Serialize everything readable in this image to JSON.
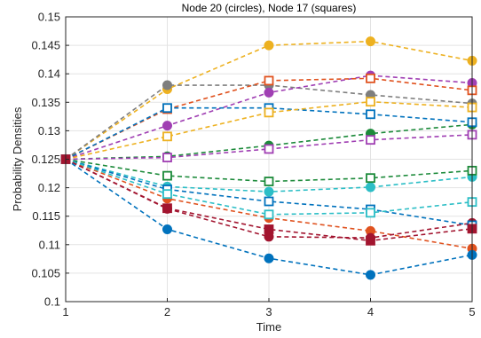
{
  "chart_data": {
    "type": "line",
    "title": "Node 20 (circles), Node  17 (squares)",
    "xlabel": "Time",
    "ylabel": "Probability Densities",
    "xlim": [
      1,
      5
    ],
    "ylim": [
      0.1,
      0.15
    ],
    "x": [
      1,
      2,
      3,
      4,
      5
    ],
    "x_ticks": [
      "1",
      "2",
      "3",
      "4",
      "5"
    ],
    "y_ticks": [
      "0.1",
      "0.105",
      "0.11",
      "0.115",
      "0.12",
      "0.125",
      "0.13",
      "0.135",
      "0.14",
      "0.145",
      "0.15"
    ],
    "grid": true,
    "line_style": "dashed",
    "series": [
      {
        "marker": "circle",
        "color": "#EDB120",
        "values": [
          0.125,
          0.1373,
          0.145,
          0.1457,
          0.1423
        ]
      },
      {
        "marker": "circle",
        "color": "#7E7E7E",
        "values": [
          0.125,
          0.138,
          0.138,
          0.1363,
          0.1348
        ]
      },
      {
        "marker": "circle",
        "color": "#A03FB3",
        "values": [
          0.125,
          0.1309,
          0.1367,
          0.1397,
          0.1384
        ]
      },
      {
        "marker": "circle",
        "color": "#1C8A3A",
        "values": [
          0.125,
          0.1255,
          0.1274,
          0.1295,
          0.1311
        ]
      },
      {
        "marker": "circle",
        "color": "#2CBEC6",
        "values": [
          0.125,
          0.1202,
          0.1193,
          0.1201,
          0.1219
        ]
      },
      {
        "marker": "circle",
        "color": "#E0521F",
        "values": [
          0.125,
          0.1181,
          0.1147,
          0.1124,
          0.1093
        ]
      },
      {
        "marker": "circle",
        "color": "#A2142F",
        "values": [
          0.125,
          0.1163,
          0.1114,
          0.1112,
          0.1138
        ]
      },
      {
        "marker": "circle",
        "color": "#0072BD",
        "values": [
          0.125,
          0.1127,
          0.1076,
          0.1047,
          0.1082
        ]
      },
      {
        "marker": "square",
        "color": "#E0521F",
        "values": [
          0.125,
          0.1338,
          0.1388,
          0.1392,
          0.1371
        ]
      },
      {
        "marker": "square",
        "color": "#0072BD",
        "values": [
          0.125,
          0.134,
          0.134,
          0.1329,
          0.1315
        ]
      },
      {
        "marker": "square",
        "color": "#EDB120",
        "values": [
          0.125,
          0.129,
          0.1332,
          0.1351,
          0.1341
        ]
      },
      {
        "marker": "square",
        "color": "#A03FB3",
        "values": [
          0.125,
          0.1253,
          0.1268,
          0.1284,
          0.1293
        ]
      },
      {
        "marker": "square",
        "color": "#1C8A3A",
        "values": [
          0.125,
          0.1221,
          0.1211,
          0.1217,
          0.123
        ]
      },
      {
        "marker": "square",
        "color": "#0072BD",
        "values": [
          0.125,
          0.1197,
          0.1176,
          0.1162,
          0.1134
        ]
      },
      {
        "marker": "square",
        "color": "#2CBEC6",
        "values": [
          0.125,
          0.1189,
          0.1153,
          0.1156,
          0.1175
        ]
      },
      {
        "marker": "square",
        "color": "#A2142F",
        "values": [
          0.125,
          0.1164,
          0.1127,
          0.1107,
          0.1128
        ]
      }
    ]
  }
}
